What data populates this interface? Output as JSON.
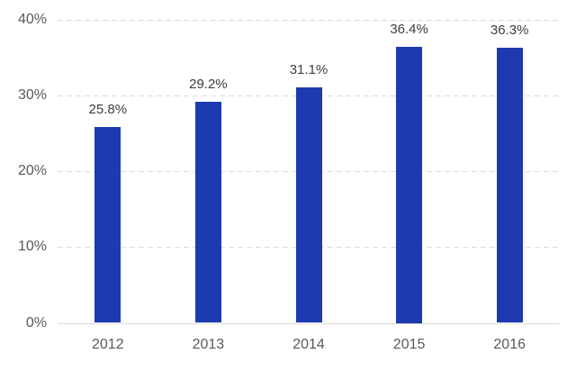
{
  "chart_data": {
    "type": "bar",
    "title": "",
    "xlabel": "",
    "ylabel": "",
    "categories": [
      "2012",
      "2013",
      "2014",
      "2015",
      "2016"
    ],
    "values": [
      25.8,
      29.2,
      31.1,
      36.4,
      36.3
    ],
    "data_labels": [
      "25.8%",
      "29.2%",
      "31.1%",
      "36.4%",
      "36.3%"
    ],
    "ytick_values": [
      0,
      10,
      20,
      30,
      40
    ],
    "ytick_labels": [
      "0%",
      "10%",
      "20%",
      "30%",
      "40%"
    ],
    "ylim": [
      0,
      40
    ],
    "grid": "dashed horizontal gridlines at each y tick, solid axis line at 0%",
    "legend": "none",
    "colors": {
      "bar": "#1e3ab0",
      "gridline": "#dcdcdc",
      "axis_line": "#d9d9d9",
      "tick_label": "#595959",
      "data_label": "#3d3d3d",
      "background": "#ffffff"
    }
  }
}
